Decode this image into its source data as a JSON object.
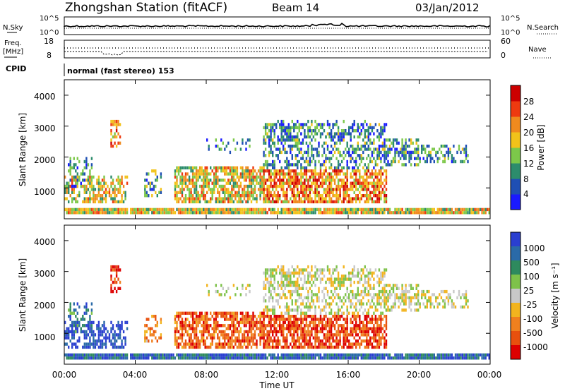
{
  "header": {
    "title": "Zhongshan Station (fitACF)",
    "beam": "Beam 14",
    "date": "03/Jan/2012"
  },
  "strips": {
    "nsky_label": "N.Sky",
    "nsearch_label": "N.Search",
    "freq_label_1": "Freq.",
    "freq_label_2": "[MHz]",
    "nave_label": "Nave",
    "cpid_label": "CPID",
    "cpid_value": "normal (fast stereo) 153",
    "noise_left_ticks": [
      "10^5",
      "10^0"
    ],
    "noise_right_ticks": [
      "10^5",
      "10^0"
    ],
    "freq_left_ticks": [
      "18",
      "8"
    ],
    "freq_right_ticks": [
      "60",
      "0"
    ]
  },
  "chart_data": [
    {
      "type": "heatmap",
      "name": "power",
      "ylabel": "Slant Range [km]",
      "y_ticks": [
        "1000",
        "2000",
        "3000",
        "4000"
      ],
      "colorbar_label": "Power [dB]",
      "colorbar_ticks": [
        "4",
        "8",
        "12",
        "16",
        "20",
        "24",
        "28"
      ],
      "colors": [
        "#1a1aff",
        "#1f4fb4",
        "#2c8c6c",
        "#7cc84a",
        "#f2c21a",
        "#f08a1e",
        "#ee3a10",
        "#cc0000"
      ]
    },
    {
      "type": "heatmap",
      "name": "velocity",
      "ylabel": "Slant Range [km]",
      "y_ticks": [
        "1000",
        "2000",
        "3000",
        "4000"
      ],
      "colorbar_label": "Velocity [m s⁻¹]",
      "colorbar_ticks": [
        "1000",
        "500",
        "100",
        "25",
        "-25",
        "-100",
        "-500",
        "-1000"
      ],
      "colors": [
        "#2a3fd0",
        "#2a6aa8",
        "#2e8a5e",
        "#7ec24a",
        "#c8c8c8",
        "#f2b41e",
        "#f0801e",
        "#e8500e",
        "#dd0000"
      ]
    }
  ],
  "x_axis": {
    "label": "Time UT",
    "ticks": [
      "00:00",
      "04:00",
      "08:00",
      "12:00",
      "16:00",
      "20:00",
      "00:00"
    ]
  }
}
